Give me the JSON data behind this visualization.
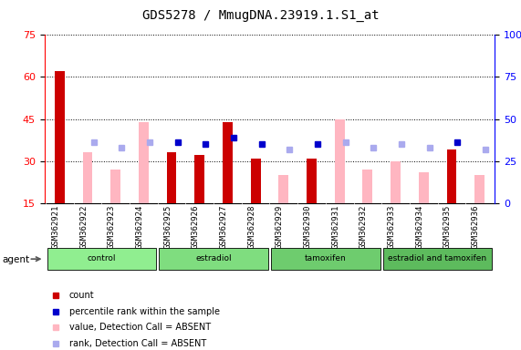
{
  "title": "GDS5278 / MmugDNA.23919.1.S1_at",
  "samples": [
    "GSM362921",
    "GSM362922",
    "GSM362923",
    "GSM362924",
    "GSM362925",
    "GSM362926",
    "GSM362927",
    "GSM362928",
    "GSM362929",
    "GSM362930",
    "GSM362931",
    "GSM362932",
    "GSM362933",
    "GSM362934",
    "GSM362935",
    "GSM362936"
  ],
  "count_present": [
    62,
    null,
    null,
    null,
    33,
    32,
    44,
    31,
    null,
    31,
    null,
    null,
    null,
    null,
    34,
    null
  ],
  "count_absent": [
    null,
    33,
    27,
    44,
    null,
    null,
    null,
    null,
    25,
    null,
    45,
    27,
    30,
    26,
    null,
    25
  ],
  "rank_present": [
    null,
    null,
    null,
    null,
    36,
    35,
    39,
    35,
    null,
    35,
    null,
    null,
    null,
    null,
    36,
    null
  ],
  "rank_absent": [
    null,
    36,
    33,
    36,
    null,
    null,
    null,
    null,
    32,
    null,
    36,
    33,
    35,
    33,
    null,
    32
  ],
  "ylim_left": [
    15,
    75
  ],
  "ylim_right": [
    0,
    100
  ],
  "yticks_left": [
    15,
    30,
    45,
    60,
    75
  ],
  "yticks_right": [
    0,
    25,
    50,
    75,
    100
  ],
  "groups": [
    {
      "label": "control",
      "start": 0,
      "end": 3
    },
    {
      "label": "estradiol",
      "start": 4,
      "end": 7
    },
    {
      "label": "tamoxifen",
      "start": 8,
      "end": 11
    },
    {
      "label": "estradiol and tamoxifen",
      "start": 12,
      "end": 15
    }
  ],
  "group_colors": [
    "#90EE90",
    "#7FDD7F",
    "#6ECC6E",
    "#5DBB5D"
  ],
  "bar_width": 0.35,
  "color_count_present": "#CC0000",
  "color_count_absent": "#FFB6C1",
  "color_rank_present": "#0000CC",
  "color_rank_absent": "#AAAAEE",
  "background_color": "#FFFFFF",
  "title_fontsize": 10,
  "legend_labels": [
    "count",
    "percentile rank within the sample",
    "value, Detection Call = ABSENT",
    "rank, Detection Call = ABSENT"
  ],
  "legend_colors": [
    "#CC0000",
    "#0000CC",
    "#FFB6C1",
    "#AAAAEE"
  ]
}
